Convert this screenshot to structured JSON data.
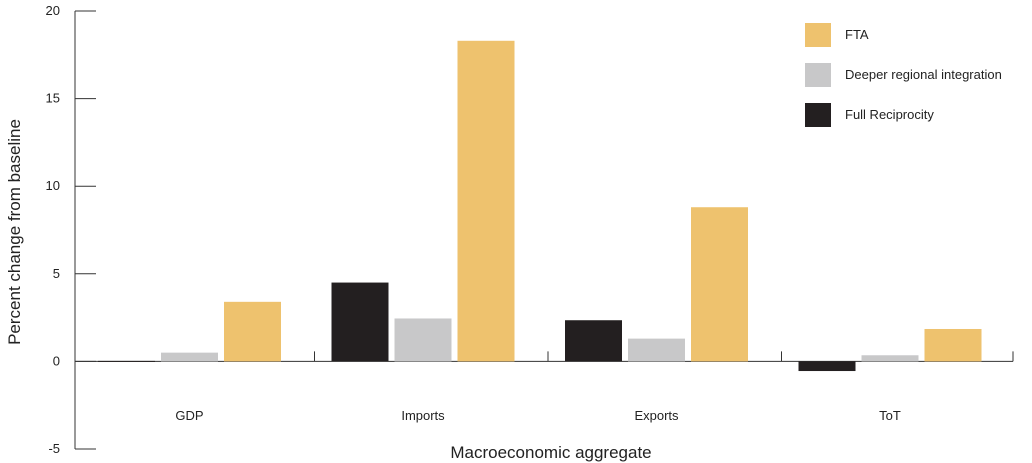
{
  "chart_data": {
    "type": "bar",
    "title": "",
    "xlabel": "Macroeconomic aggregate",
    "ylabel": "Percent change from baseline",
    "ylim": [
      -5,
      20
    ],
    "yticks": [
      -5,
      0,
      5,
      10,
      15,
      20
    ],
    "categories": [
      "GDP",
      "Imports",
      "Exports",
      "ToT"
    ],
    "series": [
      {
        "name": "Full Reciprocity",
        "color": "#231f20",
        "values": [
          0.0,
          4.5,
          2.35,
          -0.55
        ]
      },
      {
        "name": "Deeper regional integration",
        "color": "#c8c8c9",
        "values": [
          0.5,
          2.45,
          1.3,
          0.35
        ]
      },
      {
        "name": "FTA",
        "color": "#eec26e",
        "values": [
          3.4,
          18.3,
          8.8,
          1.85
        ]
      }
    ],
    "legend_order": [
      "FTA",
      "Deeper regional integration",
      "Full Reciprocity"
    ],
    "legend_position": "top-right",
    "grid": false
  }
}
